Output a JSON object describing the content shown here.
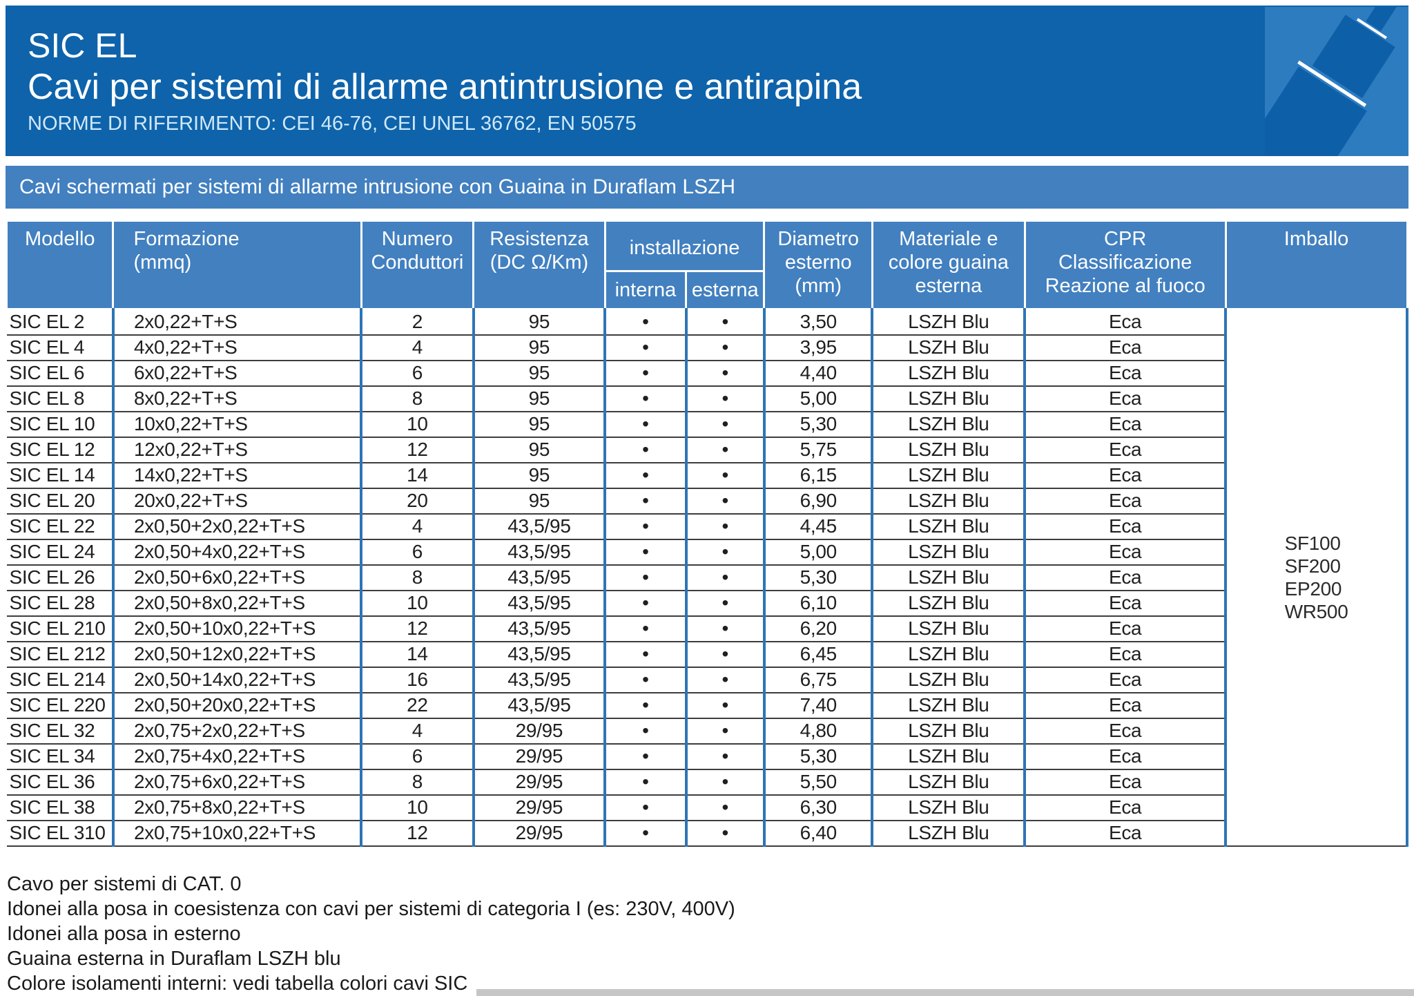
{
  "header": {
    "product_line": "SIC EL",
    "title": "Cavi per sistemi di allarme antintrusione e antirapina",
    "norms": "NORME DI RIFERIMENTO: CEI 46-76, CEI UNEL 36762, EN 50575"
  },
  "section_band": {
    "label": "Cavi schermati per sistemi di allarme intrusione con Guaina in Duraflam LSZH"
  },
  "table": {
    "headers": {
      "modello": "Modello",
      "formazione": "Formazione\n(mmq)",
      "numero_conduttori": "Numero\nConduttori",
      "resistenza": "Resistenza\n(DC Ω/Km)",
      "installazione": "installazione",
      "interna": "interna",
      "esterna": "esterna",
      "diametro": "Diametro\nesterno\n(mm)",
      "materiale": "Materiale e\ncolore guaina\nesterna",
      "cpr": "CPR\nClassificazione\nReazione al fuoco",
      "imballo": "Imballo"
    },
    "rows": [
      {
        "modello": "SIC EL 2",
        "formazione": "2x0,22+T+S",
        "conduttori": "2",
        "resistenza": "95",
        "interna": "•",
        "esterna": "•",
        "diametro": "3,50",
        "guaina": "LSZH Blu",
        "cpr": "Eca"
      },
      {
        "modello": "SIC EL 4",
        "formazione": "4x0,22+T+S",
        "conduttori": "4",
        "resistenza": "95",
        "interna": "•",
        "esterna": "•",
        "diametro": "3,95",
        "guaina": "LSZH Blu",
        "cpr": "Eca"
      },
      {
        "modello": "SIC EL 6",
        "formazione": "6x0,22+T+S",
        "conduttori": "6",
        "resistenza": "95",
        "interna": "•",
        "esterna": "•",
        "diametro": "4,40",
        "guaina": "LSZH Blu",
        "cpr": "Eca"
      },
      {
        "modello": "SIC EL 8",
        "formazione": "8x0,22+T+S",
        "conduttori": "8",
        "resistenza": "95",
        "interna": "•",
        "esterna": "•",
        "diametro": "5,00",
        "guaina": "LSZH Blu",
        "cpr": "Eca"
      },
      {
        "modello": "SIC EL 10",
        "formazione": "10x0,22+T+S",
        "conduttori": "10",
        "resistenza": "95",
        "interna": "•",
        "esterna": "•",
        "diametro": "5,30",
        "guaina": "LSZH Blu",
        "cpr": "Eca"
      },
      {
        "modello": "SIC EL 12",
        "formazione": "12x0,22+T+S",
        "conduttori": "12",
        "resistenza": "95",
        "interna": "•",
        "esterna": "•",
        "diametro": "5,75",
        "guaina": "LSZH Blu",
        "cpr": "Eca"
      },
      {
        "modello": "SIC EL 14",
        "formazione": "14x0,22+T+S",
        "conduttori": "14",
        "resistenza": "95",
        "interna": "•",
        "esterna": "•",
        "diametro": "6,15",
        "guaina": "LSZH Blu",
        "cpr": "Eca"
      },
      {
        "modello": "SIC EL 20",
        "formazione": "20x0,22+T+S",
        "conduttori": "20",
        "resistenza": "95",
        "interna": "•",
        "esterna": "•",
        "diametro": "6,90",
        "guaina": "LSZH Blu",
        "cpr": "Eca"
      },
      {
        "modello": "SIC EL 22",
        "formazione": "2x0,50+2x0,22+T+S",
        "conduttori": "4",
        "resistenza": "43,5/95",
        "interna": "•",
        "esterna": "•",
        "diametro": "4,45",
        "guaina": "LSZH Blu",
        "cpr": "Eca"
      },
      {
        "modello": "SIC EL 24",
        "formazione": "2x0,50+4x0,22+T+S",
        "conduttori": "6",
        "resistenza": "43,5/95",
        "interna": "•",
        "esterna": "•",
        "diametro": "5,00",
        "guaina": "LSZH Blu",
        "cpr": "Eca"
      },
      {
        "modello": "SIC EL 26",
        "formazione": "2x0,50+6x0,22+T+S",
        "conduttori": "8",
        "resistenza": "43,5/95",
        "interna": "•",
        "esterna": "•",
        "diametro": "5,30",
        "guaina": "LSZH Blu",
        "cpr": "Eca"
      },
      {
        "modello": "SIC EL 28",
        "formazione": "2x0,50+8x0,22+T+S",
        "conduttori": "10",
        "resistenza": "43,5/95",
        "interna": "•",
        "esterna": "•",
        "diametro": "6,10",
        "guaina": "LSZH Blu",
        "cpr": "Eca"
      },
      {
        "modello": "SIC EL 210",
        "formazione": "2x0,50+10x0,22+T+S",
        "conduttori": "12",
        "resistenza": "43,5/95",
        "interna": "•",
        "esterna": "•",
        "diametro": "6,20",
        "guaina": "LSZH Blu",
        "cpr": "Eca"
      },
      {
        "modello": "SIC EL 212",
        "formazione": "2x0,50+12x0,22+T+S",
        "conduttori": "14",
        "resistenza": "43,5/95",
        "interna": "•",
        "esterna": "•",
        "diametro": "6,45",
        "guaina": "LSZH Blu",
        "cpr": "Eca"
      },
      {
        "modello": "SIC EL 214",
        "formazione": "2x0,50+14x0,22+T+S",
        "conduttori": "16",
        "resistenza": "43,5/95",
        "interna": "•",
        "esterna": "•",
        "diametro": "6,75",
        "guaina": "LSZH Blu",
        "cpr": "Eca"
      },
      {
        "modello": "SIC EL 220",
        "formazione": "2x0,50+20x0,22+T+S",
        "conduttori": "22",
        "resistenza": "43,5/95",
        "interna": "•",
        "esterna": "•",
        "diametro": "7,40",
        "guaina": "LSZH Blu",
        "cpr": "Eca"
      },
      {
        "modello": "SIC EL 32",
        "formazione": "2x0,75+2x0,22+T+S",
        "conduttori": "4",
        "resistenza": "29/95",
        "interna": "•",
        "esterna": "•",
        "diametro": "4,80",
        "guaina": "LSZH Blu",
        "cpr": "Eca"
      },
      {
        "modello": "SIC EL 34",
        "formazione": "2x0,75+4x0,22+T+S",
        "conduttori": "6",
        "resistenza": "29/95",
        "interna": "•",
        "esterna": "•",
        "diametro": "5,30",
        "guaina": "LSZH Blu",
        "cpr": "Eca"
      },
      {
        "modello": "SIC EL 36",
        "formazione": "2x0,75+6x0,22+T+S",
        "conduttori": "8",
        "resistenza": "29/95",
        "interna": "•",
        "esterna": "•",
        "diametro": "5,50",
        "guaina": "LSZH Blu",
        "cpr": "Eca"
      },
      {
        "modello": "SIC EL 38",
        "formazione": "2x0,75+8x0,22+T+S",
        "conduttori": "10",
        "resistenza": "29/95",
        "interna": "•",
        "esterna": "•",
        "diametro": "6,30",
        "guaina": "LSZH Blu",
        "cpr": "Eca"
      },
      {
        "modello": "SIC EL 310",
        "formazione": "2x0,75+10x0,22+T+S",
        "conduttori": "12",
        "resistenza": "29/95",
        "interna": "•",
        "esterna": "•",
        "diametro": "6,40",
        "guaina": "LSZH Blu",
        "cpr": "Eca"
      }
    ],
    "imballo_values": [
      "SF100",
      "SF200",
      "EP200",
      "WR500"
    ]
  },
  "notes": [
    "Cavo per sistemi di CAT. 0",
    "Idonei alla posa in coesistenza con cavi per sistemi di categoria I (es: 230V, 400V)",
    "Idonei alla posa in esterno",
    "Guaina esterna in Duraflam LSZH blu",
    "Colore isolamenti interni: vedi tabella colori cavi SIC"
  ],
  "colors": {
    "header_bg": "#0e63ab",
    "band_bg": "#4280c0",
    "table_header_bg": "#4280c0",
    "column_border_blue": "#2e74b5",
    "row_border_dark": "#3d3d3d",
    "icon_bg": "#2e7cc0",
    "icon_cable": "#0d5fa8",
    "norms_text": "#cfe8f8",
    "bottom_bar": "#c6c6c6"
  }
}
